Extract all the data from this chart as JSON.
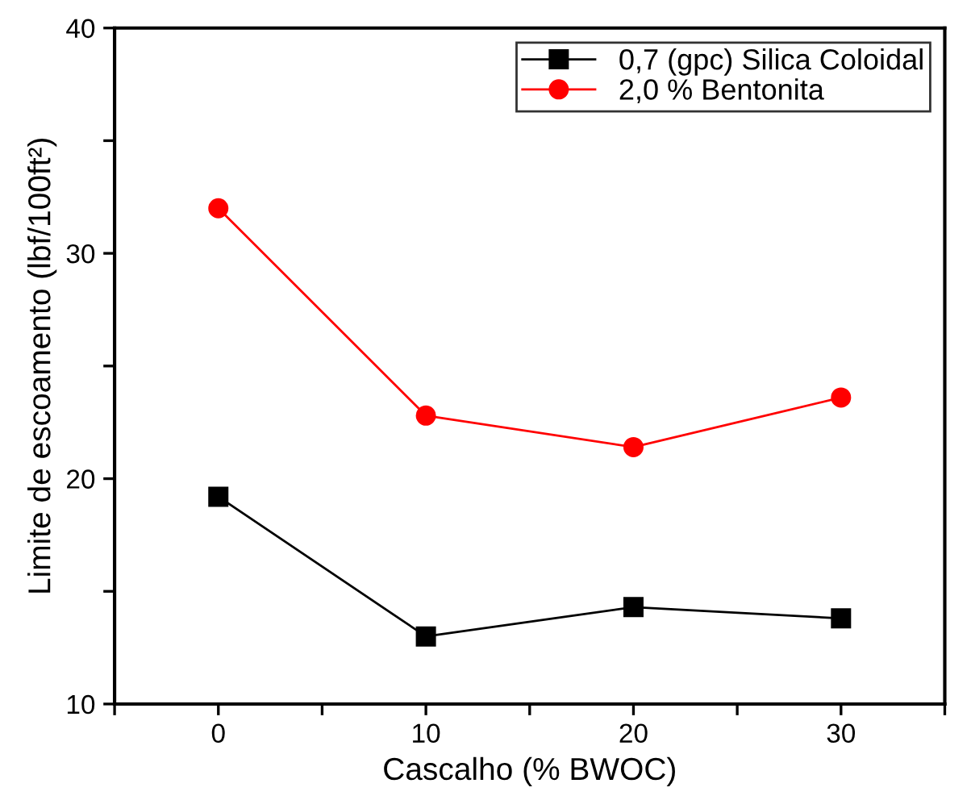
{
  "chart_data": {
    "type": "line",
    "xlabel": "Cascalho (% BWOC)",
    "ylabel": "Limite de escoamento (lbf/100ft²)",
    "x": [
      0,
      10,
      20,
      30
    ],
    "series": [
      {
        "name": "0,7 (gpc) Silica Coloidal",
        "color": "#000000",
        "marker": "square",
        "values": [
          19.2,
          13.0,
          14.3,
          13.8
        ]
      },
      {
        "name": "2,0 % Bentonita",
        "color": "#ff0000",
        "marker": "circle",
        "values": [
          32.0,
          22.8,
          21.4,
          23.6
        ]
      }
    ],
    "xlim": [
      -5,
      35
    ],
    "ylim": [
      10,
      40
    ],
    "xticks": [
      {
        "value": -5,
        "label": null
      },
      0,
      {
        "value": 5,
        "label": null
      },
      10,
      {
        "value": 15,
        "label": null
      },
      20,
      {
        "value": 25,
        "label": null
      },
      30,
      {
        "value": 35,
        "label": null
      }
    ],
    "yticks": [
      10,
      {
        "value": 15,
        "label": null
      },
      20,
      {
        "value": 25,
        "label": null
      },
      30,
      {
        "value": 35,
        "label": null
      },
      40
    ],
    "grid": false,
    "legend": "top right",
    "line_style": "solid"
  }
}
